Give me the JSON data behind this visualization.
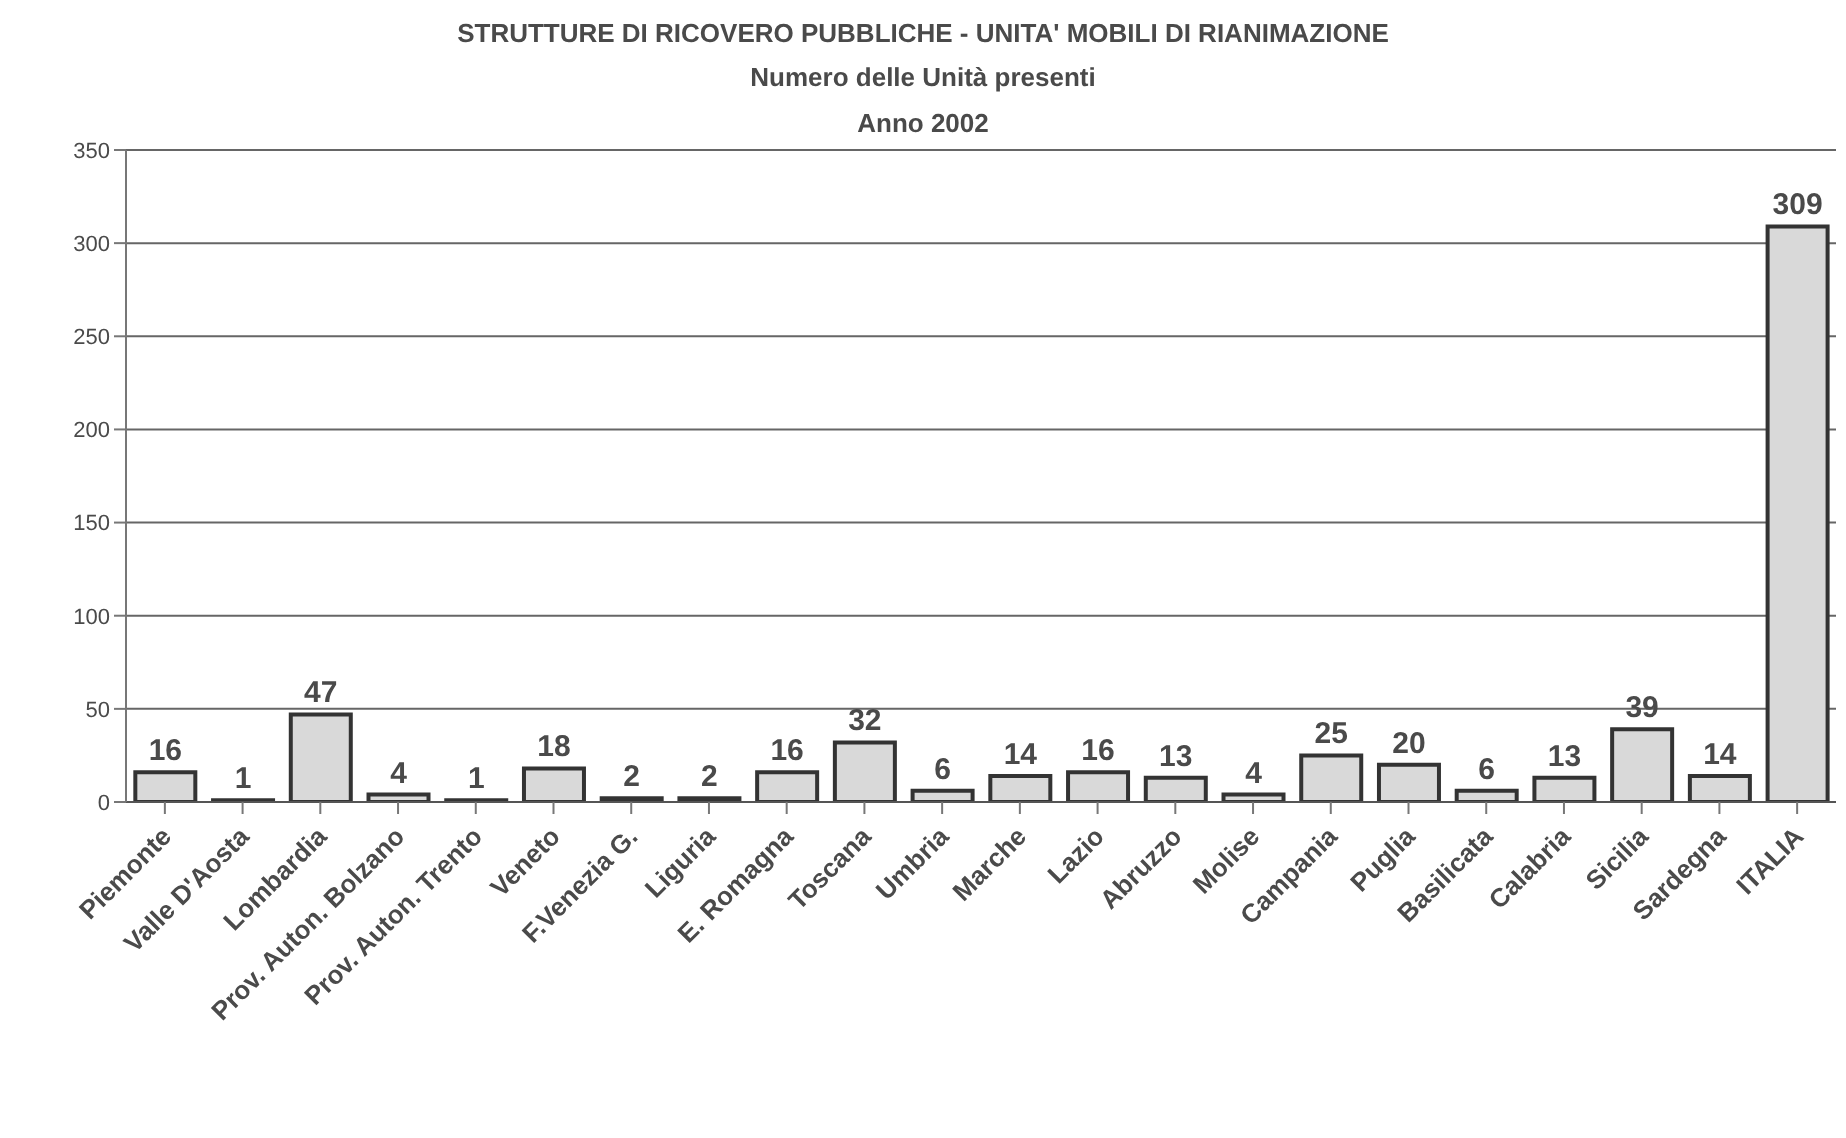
{
  "chart_data": {
    "type": "bar",
    "title": "STRUTTURE DI RICOVERO PUBBLICHE - UNITA' MOBILI DI RIANIMAZIONE",
    "subtitle": "Numero delle Unità presenti\nAnno 2002",
    "categories": [
      "Piemonte",
      "Valle D'Aosta",
      "Lombardia",
      "Prov. Auton. Bolzano",
      "Prov. Auton. Trento",
      "Veneto",
      "F.Venezia G.",
      "Liguria",
      "E. Romagna",
      "Toscana",
      "Umbria",
      "Marche",
      "Lazio",
      "Abruzzo",
      "Molise",
      "Campania",
      "Puglia",
      "Basilicata",
      "Calabria",
      "Sicilia",
      "Sardegna",
      "ITALIA"
    ],
    "values": [
      16,
      1,
      47,
      4,
      1,
      18,
      2,
      2,
      16,
      32,
      6,
      14,
      16,
      13,
      4,
      25,
      20,
      6,
      13,
      39,
      14,
      309
    ],
    "color": "#d9d9d9",
    "ylim": [
      0,
      350
    ],
    "yticks": [
      0,
      50,
      100,
      150,
      200,
      250,
      300,
      350
    ],
    "grid": "y",
    "data_labels": true
  }
}
